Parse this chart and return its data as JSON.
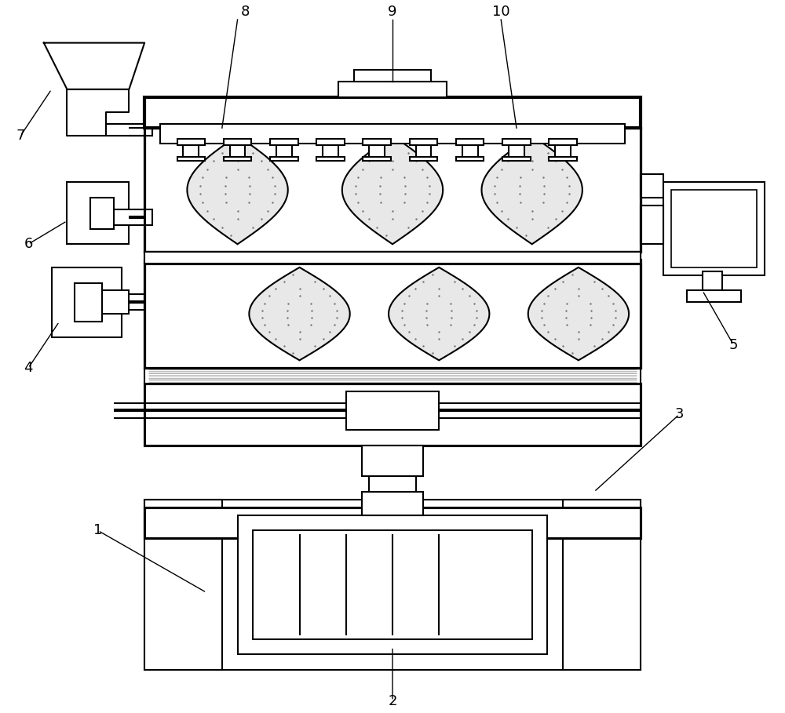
{
  "bg_color": "#ffffff",
  "line_color": "#000000",
  "lw": 1.5,
  "dot_fill": "#e8e8e8",
  "labels": [
    "1",
    "2",
    "3",
    "4",
    "5",
    "6",
    "7",
    "8",
    "9",
    "10"
  ]
}
